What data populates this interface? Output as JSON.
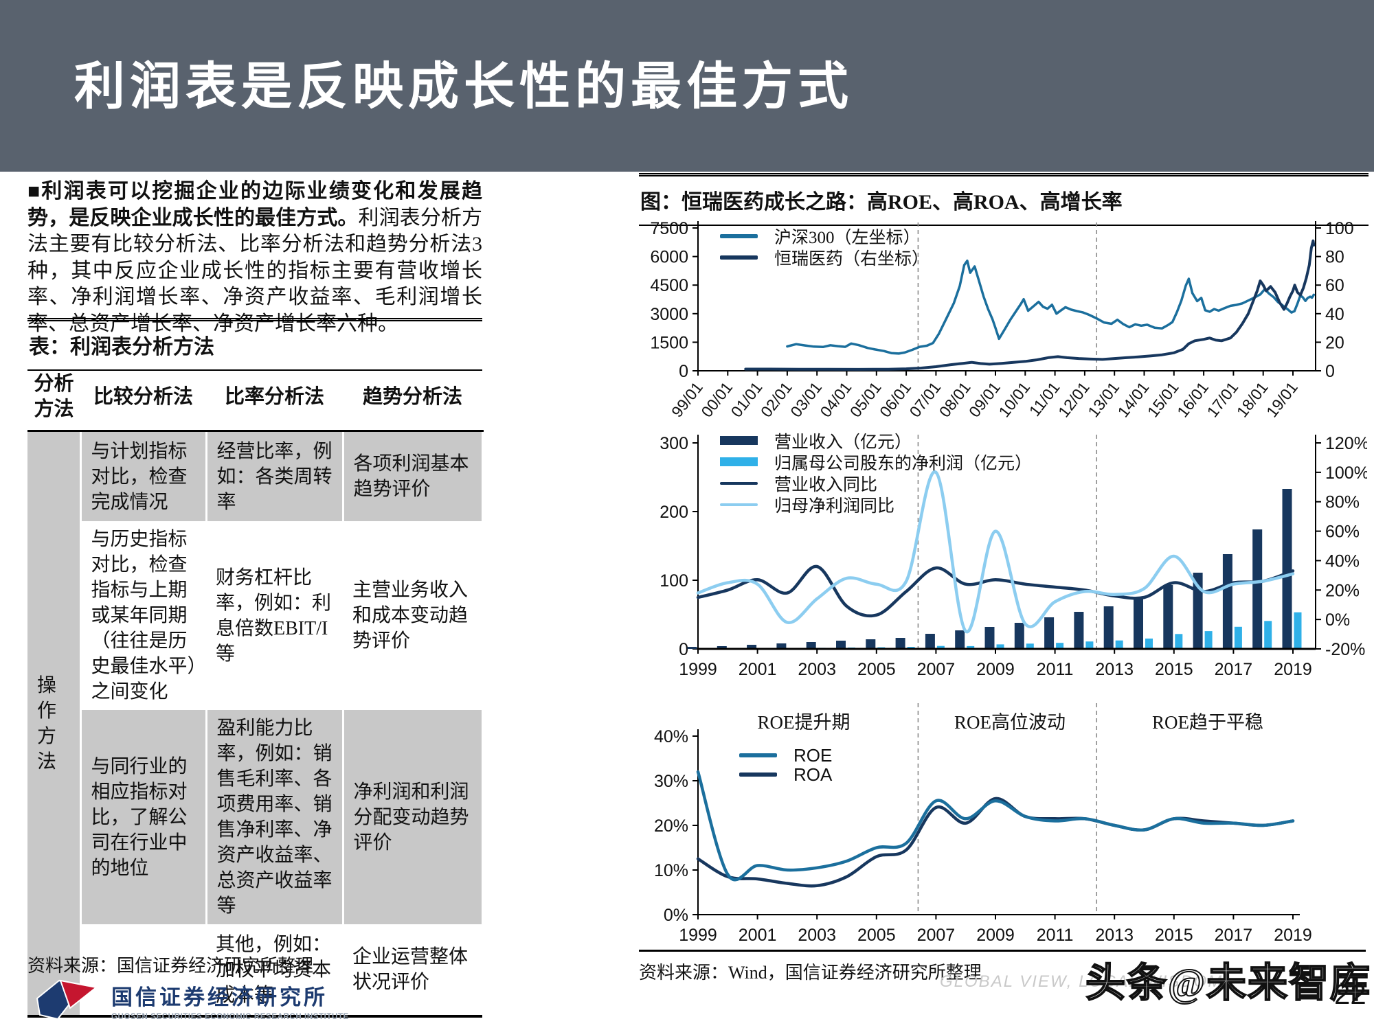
{
  "page": {
    "title": "利润表是反映成长性的最佳方式",
    "page_number": "22",
    "watermark": "头条@未来智库",
    "watermark_ghost": "GLOBAL VIEW, LOCAL WISDOM"
  },
  "left": {
    "intro_bold": "■利润表可以挖掘企业的边际业绩变化和发展趋势，是反映企业成长性的最佳方式。",
    "intro_rest": "利润表分析方法主要有比较分析法、比率分析法和趋势分析法3种，其中反应企业成长性的指标主要有营收增长率、净利润增长率、净资产收益率、毛利润增长率、总资产增长率、净资产增长率六种。",
    "table_title": "表：利润表分析方法",
    "table": {
      "col_headers": [
        "分析方法",
        "比较分析法",
        "比率分析法",
        "趋势分析法"
      ],
      "row_label": "操作方法",
      "rows": [
        {
          "compare": "与计划指标对比，检查完成情况",
          "ratio": "经营比率，例如：各类周转率",
          "trend": "各项利润基本趋势评价"
        },
        {
          "compare": "与历史指标对比，检查指标与上期或某年同期（往往是历史最佳水平）之间变化",
          "ratio": "财务杠杆比率，例如：利息倍数EBIT/I等",
          "trend": "主营业务收入和成本变动趋势评价"
        },
        {
          "compare": "与同行业的相应指标对比，了解公司在行业中的地位",
          "ratio": "盈利能力比率，例如：销售毛利率、各项费用率、销售净利率、净资产收益率、总资产收益率等",
          "trend": "净利润和利润分配变动趋势评价"
        },
        {
          "compare": "",
          "ratio": "其他，例如：加权平均资本成本等",
          "trend": "企业运营整体状况评价"
        }
      ]
    },
    "source": "资料来源：国信证券经济研究所整理",
    "logo": {
      "cn": "国信证券经济研究所",
      "en": "GUOSEN SECURITIES ECONOMIC RESEARCH INSTITUTE"
    }
  },
  "right": {
    "chart_title": "图：恒瑞医药成长之路：高ROE、高ROA、高增长率",
    "source": "资料来源：Wind，国信证券经济研究所整理"
  },
  "colors": {
    "navy": "#17375e",
    "teal": "#1b6f9d",
    "sky": "#2fb0e8",
    "skyl": "#8ccdf0",
    "header_bg": "#59626e",
    "table_gray": "#c8c8c8"
  },
  "chart_data": [
    {
      "type": "line",
      "title": "沪深300 vs 恒瑞医药 股价走势",
      "x_ticks": [
        "99/01",
        "00/01",
        "01/01",
        "02/01",
        "03/01",
        "04/01",
        "05/01",
        "06/01",
        "07/01",
        "08/01",
        "09/01",
        "10/01",
        "11/01",
        "12/01",
        "13/01",
        "14/01",
        "15/01",
        "16/01",
        "17/01",
        "18/01",
        "19/01"
      ],
      "left_axis": {
        "range": [
          0,
          7500
        ],
        "ticks": [
          0,
          1500,
          3000,
          4500,
          6000,
          7500
        ]
      },
      "right_axis": {
        "range": [
          0,
          100
        ],
        "ticks": [
          0,
          20,
          40,
          60,
          80,
          100
        ]
      },
      "vlines": [
        2006.4,
        2012.4
      ],
      "series": [
        {
          "name": "沪深300（左坐标）",
          "axis": "left",
          "color": "teal",
          "width": 3.5,
          "points": [
            [
              2002.0,
              1280
            ],
            [
              2002.3,
              1400
            ],
            [
              2002.6,
              1330
            ],
            [
              2002.9,
              1270
            ],
            [
              2003.2,
              1250
            ],
            [
              2003.45,
              1340
            ],
            [
              2003.7,
              1295
            ],
            [
              2003.95,
              1260
            ],
            [
              2004.15,
              1430
            ],
            [
              2004.4,
              1350
            ],
            [
              2004.7,
              1200
            ],
            [
              2004.95,
              1120
            ],
            [
              2005.25,
              1040
            ],
            [
              2005.5,
              930
            ],
            [
              2005.75,
              905
            ],
            [
              2005.95,
              960
            ],
            [
              2006.2,
              1100
            ],
            [
              2006.45,
              1260
            ],
            [
              2006.7,
              1320
            ],
            [
              2006.9,
              1460
            ],
            [
              2007.1,
              1950
            ],
            [
              2007.35,
              2750
            ],
            [
              2007.6,
              3550
            ],
            [
              2007.8,
              4450
            ],
            [
              2007.95,
              5550
            ],
            [
              2008.05,
              5780
            ],
            [
              2008.15,
              5150
            ],
            [
              2008.3,
              5480
            ],
            [
              2008.45,
              4700
            ],
            [
              2008.6,
              3900
            ],
            [
              2008.75,
              3250
            ],
            [
              2008.9,
              2700
            ],
            [
              2009.0,
              2250
            ],
            [
              2009.12,
              1680
            ],
            [
              2009.3,
              2150
            ],
            [
              2009.5,
              2680
            ],
            [
              2009.7,
              3150
            ],
            [
              2009.85,
              3500
            ],
            [
              2009.95,
              3760
            ],
            [
              2010.1,
              3150
            ],
            [
              2010.3,
              3420
            ],
            [
              2010.45,
              3620
            ],
            [
              2010.6,
              3360
            ],
            [
              2010.75,
              3260
            ],
            [
              2010.9,
              3470
            ],
            [
              2011.05,
              3000
            ],
            [
              2011.2,
              3170
            ],
            [
              2011.35,
              3340
            ],
            [
              2011.55,
              3210
            ],
            [
              2011.75,
              3130
            ],
            [
              2011.95,
              3060
            ],
            [
              2012.15,
              2940
            ],
            [
              2012.4,
              2750
            ],
            [
              2012.65,
              2540
            ],
            [
              2012.9,
              2470
            ],
            [
              2013.1,
              2680
            ],
            [
              2013.3,
              2450
            ],
            [
              2013.5,
              2290
            ],
            [
              2013.7,
              2440
            ],
            [
              2013.9,
              2370
            ],
            [
              2014.1,
              2420
            ],
            [
              2014.35,
              2260
            ],
            [
              2014.6,
              2230
            ],
            [
              2014.8,
              2400
            ],
            [
              2014.95,
              2560
            ],
            [
              2015.1,
              3080
            ],
            [
              2015.25,
              3680
            ],
            [
              2015.4,
              4480
            ],
            [
              2015.5,
              4830
            ],
            [
              2015.62,
              4080
            ],
            [
              2015.78,
              3660
            ],
            [
              2015.92,
              3830
            ],
            [
              2016.05,
              3180
            ],
            [
              2016.2,
              3100
            ],
            [
              2016.35,
              3240
            ],
            [
              2016.5,
              3160
            ],
            [
              2016.7,
              3290
            ],
            [
              2016.9,
              3410
            ],
            [
              2017.1,
              3460
            ],
            [
              2017.3,
              3540
            ],
            [
              2017.5,
              3690
            ],
            [
              2017.7,
              3840
            ],
            [
              2017.9,
              4010
            ],
            [
              2018.05,
              4280
            ],
            [
              2018.2,
              4050
            ],
            [
              2018.35,
              3870
            ],
            [
              2018.5,
              3610
            ],
            [
              2018.65,
              3440
            ],
            [
              2018.8,
              3260
            ],
            [
              2018.95,
              3060
            ],
            [
              2019.05,
              3130
            ],
            [
              2019.15,
              3520
            ],
            [
              2019.25,
              3960
            ],
            [
              2019.33,
              3860
            ],
            [
              2019.42,
              3670
            ],
            [
              2019.5,
              3830
            ],
            [
              2019.58,
              3890
            ],
            [
              2019.64,
              3840
            ],
            [
              2019.7,
              3990
            ]
          ]
        },
        {
          "name": "恒瑞医药（右坐标）",
          "axis": "right",
          "color": "navy",
          "width": 4,
          "points": [
            [
              2000.6,
              1.2
            ],
            [
              2001.4,
              1.2
            ],
            [
              2002.4,
              1.1
            ],
            [
              2003.4,
              1.1
            ],
            [
              2004.4,
              1.0
            ],
            [
              2005.4,
              1.1
            ],
            [
              2006.0,
              1.4
            ],
            [
              2006.5,
              1.9
            ],
            [
              2007.0,
              2.9
            ],
            [
              2007.5,
              4.3
            ],
            [
              2007.9,
              5.2
            ],
            [
              2008.2,
              5.9
            ],
            [
              2008.5,
              5.1
            ],
            [
              2008.8,
              4.6
            ],
            [
              2009.2,
              5.2
            ],
            [
              2009.6,
              5.9
            ],
            [
              2010.0,
              6.6
            ],
            [
              2010.4,
              7.7
            ],
            [
              2010.8,
              9.3
            ],
            [
              2011.1,
              9.9
            ],
            [
              2011.4,
              9.2
            ],
            [
              2011.8,
              8.6
            ],
            [
              2012.2,
              8.2
            ],
            [
              2012.6,
              8.0
            ],
            [
              2013.0,
              8.6
            ],
            [
              2013.4,
              9.2
            ],
            [
              2013.8,
              9.7
            ],
            [
              2014.2,
              10.4
            ],
            [
              2014.6,
              11.2
            ],
            [
              2015.0,
              12.6
            ],
            [
              2015.3,
              15.0
            ],
            [
              2015.5,
              19.0
            ],
            [
              2015.7,
              21.0
            ],
            [
              2016.0,
              22.0
            ],
            [
              2016.2,
              23.0
            ],
            [
              2016.4,
              21.5
            ],
            [
              2016.6,
              21.0
            ],
            [
              2016.9,
              23.0
            ],
            [
              2017.1,
              27.0
            ],
            [
              2017.3,
              33.0
            ],
            [
              2017.5,
              40.0
            ],
            [
              2017.65,
              48.0
            ],
            [
              2017.8,
              56.0
            ],
            [
              2017.9,
              63.0
            ],
            [
              2018.0,
              60.0
            ],
            [
              2018.1,
              56.0
            ],
            [
              2018.25,
              59.0
            ],
            [
              2018.4,
              55.0
            ],
            [
              2018.55,
              48.0
            ],
            [
              2018.7,
              43.0
            ],
            [
              2018.8,
              47.0
            ],
            [
              2018.9,
              52.0
            ],
            [
              2019.0,
              56.0
            ],
            [
              2019.06,
              60.0
            ],
            [
              2019.15,
              55.0
            ],
            [
              2019.25,
              53.0
            ],
            [
              2019.35,
              58.0
            ],
            [
              2019.45,
              65.0
            ],
            [
              2019.55,
              74.0
            ],
            [
              2019.62,
              86.0
            ],
            [
              2019.68,
              91.0
            ],
            [
              2019.7,
              88.0
            ]
          ]
        }
      ]
    },
    {
      "type": "bar+line",
      "title": "营业收入与净利润及同比增速",
      "categories": [
        1999,
        2000,
        2001,
        2002,
        2003,
        2004,
        2005,
        2006,
        2007,
        2008,
        2009,
        2010,
        2011,
        2012,
        2013,
        2014,
        2015,
        2016,
        2017,
        2018,
        2019
      ],
      "x_ticks": [
        1999,
        2001,
        2003,
        2005,
        2007,
        2009,
        2011,
        2013,
        2015,
        2017,
        2019
      ],
      "left_axis": {
        "range": [
          0,
          300
        ],
        "ticks": [
          0,
          100,
          200,
          300
        ]
      },
      "right_axis": {
        "range": [
          -20,
          120
        ],
        "ticks": [
          -20,
          0,
          20,
          40,
          60,
          80,
          100,
          120
        ],
        "suffix": "%"
      },
      "vlines": [
        2006.4,
        2012.4
      ],
      "bar_series": [
        {
          "name": "营业收入（亿元）",
          "axis": "left",
          "color": "navy",
          "values": [
            3,
            4,
            6,
            8,
            10,
            12,
            14,
            16,
            22,
            27,
            32,
            38,
            46,
            54,
            62,
            75,
            93,
            111,
            138,
            174,
            233
          ]
        },
        {
          "name": "归属母公司股东的净利润（亿元）",
          "axis": "left",
          "color": "sky",
          "values": [
            0.5,
            0.7,
            1,
            1.3,
            1.6,
            2,
            2.4,
            3,
            4.3,
            4.1,
            6.6,
            7.7,
            8.8,
            10.8,
            12.3,
            15.1,
            21.7,
            25.9,
            32.2,
            40.7,
            53.3
          ]
        }
      ],
      "line_series": [
        {
          "name": "营业收入同比",
          "axis": "right",
          "color": "navy",
          "width": 4.5,
          "values": [
            15,
            20,
            27,
            18,
            36,
            9,
            3,
            19,
            35,
            24,
            27,
            24,
            22,
            20,
            16,
            15,
            25,
            19,
            25,
            26,
            33
          ]
        },
        {
          "name": "归母净利润同比",
          "axis": "right",
          "color": "skyl",
          "width": 4.5,
          "values": [
            18,
            25,
            24,
            -2,
            14,
            28,
            24,
            26,
            100,
            -8,
            60,
            -3,
            12,
            19,
            17,
            21,
            43,
            19,
            24,
            26,
            31
          ]
        }
      ]
    },
    {
      "type": "line",
      "title": "ROE与ROA",
      "categories": [
        1999,
        2000,
        2001,
        2002,
        2003,
        2004,
        2005,
        2006,
        2007,
        2008,
        2009,
        2010,
        2011,
        2012,
        2013,
        2014,
        2015,
        2016,
        2017,
        2018,
        2019
      ],
      "x_ticks": [
        1999,
        2001,
        2003,
        2005,
        2007,
        2009,
        2011,
        2013,
        2015,
        2017,
        2019
      ],
      "left_axis": {
        "range": [
          0,
          40
        ],
        "ticks": [
          0,
          10,
          20,
          30,
          40
        ],
        "suffix": "%"
      },
      "vlines": [
        2006.4,
        2012.4
      ],
      "period_labels": [
        "ROE提升期",
        "ROE高位波动",
        "ROE趋于平稳"
      ],
      "series": [
        {
          "name": "ROE",
          "color": "teal",
          "width": 4.5,
          "values": [
            32,
            9,
            11,
            10,
            10.5,
            12,
            15,
            16,
            25.5,
            21.5,
            25.5,
            22,
            21,
            21.5,
            20,
            19,
            21.5,
            20.5,
            20.5,
            20,
            21
          ]
        },
        {
          "name": "ROA",
          "color": "navy",
          "width": 4.5,
          "values": [
            12.5,
            8.5,
            8,
            7,
            6.5,
            8.5,
            13,
            14.5,
            24,
            20.5,
            26,
            22,
            21.5,
            21.5,
            20,
            19,
            21.5,
            21,
            20.5,
            20,
            21
          ]
        }
      ]
    }
  ]
}
